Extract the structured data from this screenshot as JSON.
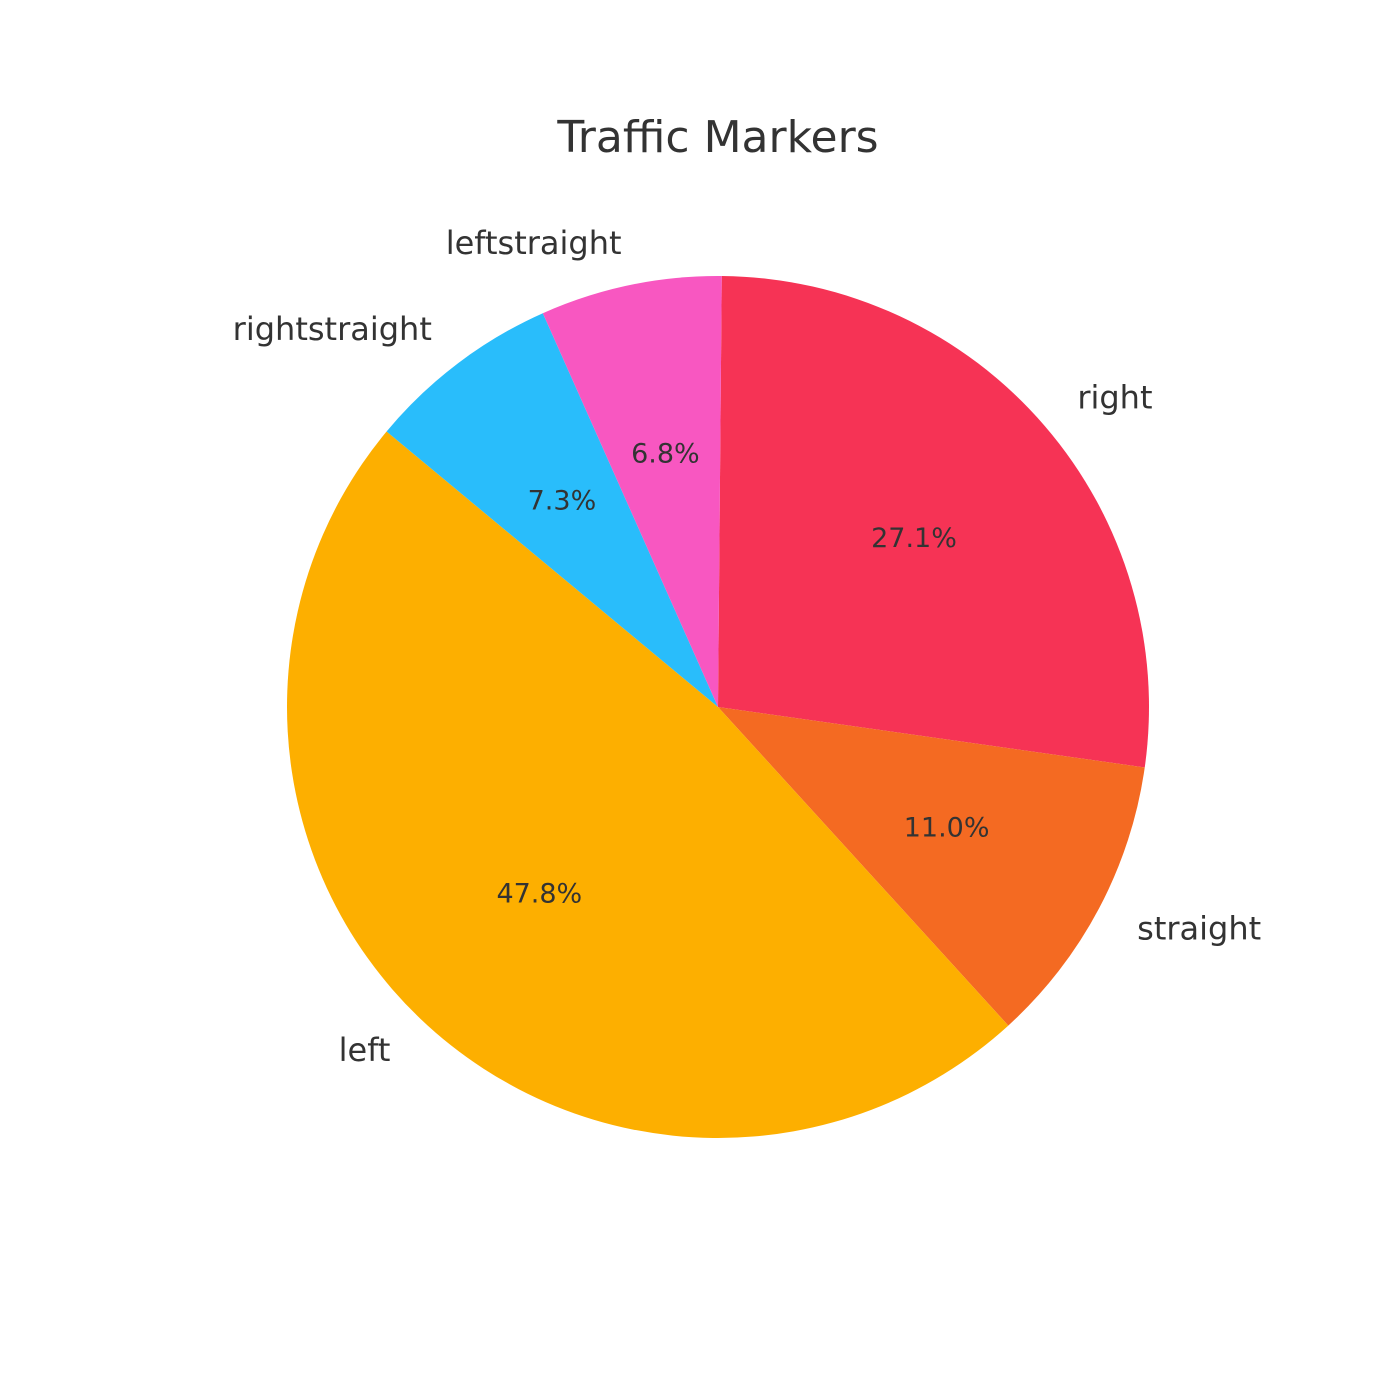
{
  "chart_data": {
    "type": "pie",
    "title": "Traffic Markers",
    "categories": [
      "right",
      "straight",
      "left",
      "rightstraight",
      "leftstraight"
    ],
    "values": [
      27.1,
      11.0,
      47.8,
      7.3,
      6.8
    ],
    "value_labels": [
      "27.1%",
      "11.0%",
      "47.8%",
      "7.3%",
      "6.8%"
    ],
    "colors": [
      "#f63355",
      "#f46a22",
      "#fdaf00",
      "#29bdfb",
      "#f857c1"
    ],
    "start_angle_deg": 89.5,
    "direction": "clockwise",
    "legend": "none"
  }
}
